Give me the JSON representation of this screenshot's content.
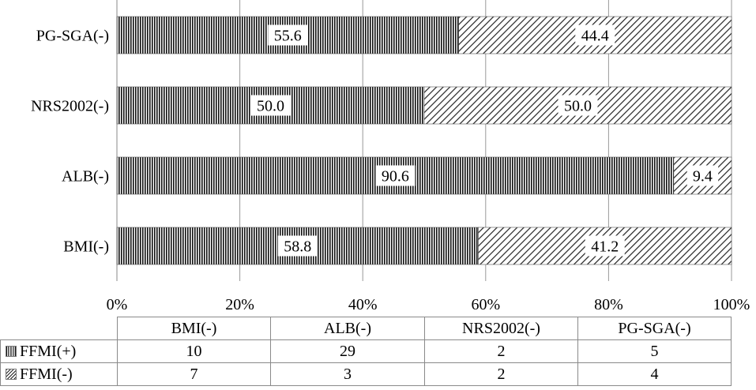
{
  "chart_data": {
    "type": "bar",
    "orientation": "horizontal",
    "stacked": "percent",
    "categories": [
      "BMI(-)",
      "ALB(-)",
      "NRS2002(-)",
      "PG-SGA(-)"
    ],
    "series": [
      {
        "name": "FFMI(+)",
        "percent": [
          58.8,
          90.6,
          50.0,
          55.6
        ],
        "count": [
          10,
          29,
          2,
          5
        ],
        "percent_labels": [
          "58.8",
          "90.6",
          "50.0",
          "55.6"
        ]
      },
      {
        "name": "FFMI(-)",
        "percent": [
          41.2,
          9.4,
          50.0,
          44.4
        ],
        "count": [
          7,
          3,
          2,
          4
        ],
        "percent_labels": [
          "41.2",
          "9.4",
          "50.0",
          "44.4"
        ]
      }
    ],
    "xlim": [
      0,
      100
    ],
    "x_ticks": [
      "0%",
      "20%",
      "40%",
      "60%",
      "80%",
      "100%"
    ],
    "grid": true,
    "legend": "data-table-below"
  },
  "table": {
    "headers": [
      "BMI(-)",
      "ALB(-)",
      "NRS2002(-)",
      "PG-SGA(-)"
    ],
    "rows": [
      {
        "label": "FFMI(+)",
        "values": [
          "10",
          "29",
          "2",
          "5"
        ]
      },
      {
        "label": "FFMI(-)",
        "values": [
          "7",
          "3",
          "2",
          "4"
        ]
      }
    ]
  },
  "colors": {
    "axis": "#8a8a8a",
    "grid": "#9a9a9a",
    "pattern_ink": "#111111",
    "background": "#ffffff"
  }
}
